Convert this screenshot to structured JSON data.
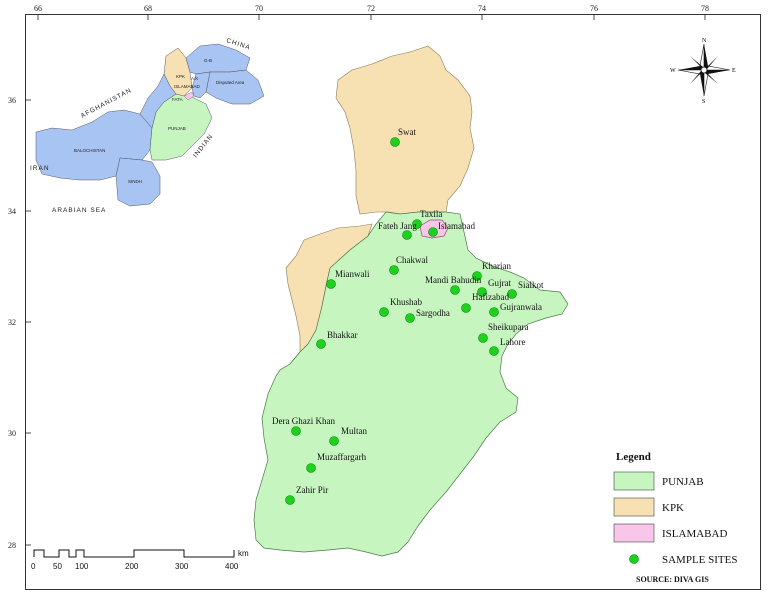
{
  "axes": {
    "x_ticks": [
      "66",
      "68",
      "70",
      "72",
      "74",
      "76",
      "78"
    ],
    "y_ticks": [
      "36",
      "34",
      "32",
      "30",
      "28"
    ]
  },
  "compass": {
    "n": "N",
    "s": "S",
    "e": "E",
    "w": "W"
  },
  "inset": {
    "labels": {
      "afghanistan": "AFGHANISTAN",
      "china": "CHINA",
      "iran": "IRAN",
      "arabian_sea": "ARABIAN SEA",
      "indian": "INDIAN",
      "baluchistan": "BALOCHISTAN",
      "sindh": "SINDH",
      "punjab": "PUNJAB",
      "kpk": "KPK",
      "fata": "FATA",
      "gb": "G-B",
      "ajk": "A.K",
      "islamabad": "ISLAMABAD",
      "disputed": "Disputed Area"
    }
  },
  "sites": [
    {
      "name": "Swat"
    },
    {
      "name": "Taxila"
    },
    {
      "name": "Fateh Jang"
    },
    {
      "name": "Islamabad"
    },
    {
      "name": "Kharian"
    },
    {
      "name": "Chakwal"
    },
    {
      "name": "Mianwali"
    },
    {
      "name": "Mandi Bahudin"
    },
    {
      "name": "Gujrat"
    },
    {
      "name": "Sialkot"
    },
    {
      "name": "Hafizabad"
    },
    {
      "name": "Gujranwala"
    },
    {
      "name": "Khushab"
    },
    {
      "name": "Sargodha"
    },
    {
      "name": "Sheikupara"
    },
    {
      "name": "Lahore"
    },
    {
      "name": "Bhakkar"
    },
    {
      "name": "Dera Ghazi Khan"
    },
    {
      "name": "Multan"
    },
    {
      "name": "Muzaffargarh"
    },
    {
      "name": "Zahir Pir"
    }
  ],
  "legend": {
    "title": "Legend",
    "items": [
      {
        "label": "PUNJAB",
        "color": "#c6f5c0"
      },
      {
        "label": "KPK",
        "color": "#f7e1b2"
      },
      {
        "label": "ISLAMABAD",
        "color": "#f8c6e8"
      },
      {
        "label": "SAMPLE SITES",
        "color": "#1ed11e"
      }
    ],
    "source": "SOURCE: DIVA GIS"
  },
  "scale_bar": {
    "labels": [
      "0",
      "50",
      "100",
      "200",
      "300",
      "400"
    ],
    "unit": "km"
  },
  "colors": {
    "punjab": "#c6f5c0",
    "kpk": "#f7e1b2",
    "islamabad": "#f8c6e8",
    "baluchistan": "#a8c4f2",
    "sites": "#1ed11e"
  }
}
